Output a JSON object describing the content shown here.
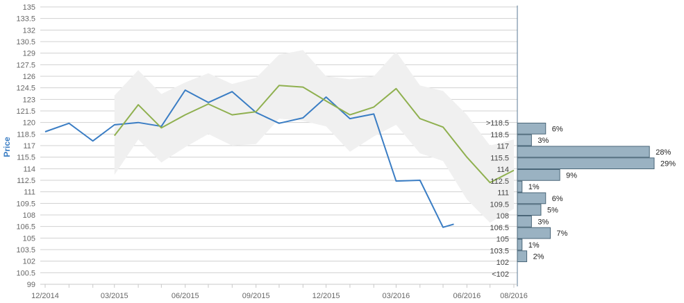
{
  "chart_data": {
    "type": "line",
    "ylabel": "Price",
    "ylim": [
      99,
      135
    ],
    "y_ticks": [
      "135",
      "133.5",
      "132",
      "130.5",
      "129",
      "127.5",
      "126",
      "124.5",
      "123",
      "121.5",
      "120",
      "118.5",
      "117",
      "115.5",
      "114",
      "112.5",
      "111",
      "109.5",
      "108",
      "106.5",
      "105",
      "103.5",
      "102",
      "100.5",
      "99"
    ],
    "x_ticks": [
      "12/2014",
      "03/2015",
      "06/2015",
      "09/2015",
      "12/2015",
      "03/2016",
      "06/2016",
      "08/2016"
    ],
    "grid": true,
    "colors": {
      "price": "#3a7dc4",
      "target": "#8fb04f",
      "band": "#f0f0f0",
      "bars": "#9ab2c2",
      "bar_border": "#4a6678"
    },
    "series": [
      {
        "role": "price",
        "x": [
          "2014-12-01",
          "2015-01-01",
          "2015-02-01",
          "2015-03-01",
          "2015-04-01",
          "2015-05-01",
          "2015-06-01",
          "2015-07-01",
          "2015-08-01",
          "2015-09-01",
          "2015-10-01",
          "2015-11-01",
          "2015-12-01",
          "2016-01-01",
          "2016-02-01",
          "2016-03-01",
          "2016-04-01",
          "2016-05-01",
          "2016-05-15"
        ],
        "values": [
          118.8,
          119.9,
          117.6,
          119.7,
          120.0,
          119.5,
          124.2,
          122.6,
          124.0,
          121.3,
          119.9,
          120.6,
          123.3,
          120.5,
          121.1,
          112.4,
          112.5,
          106.4,
          106.8
        ]
      },
      {
        "role": "target",
        "x": [
          "2015-03-01",
          "2015-04-01",
          "2015-05-01",
          "2015-06-01",
          "2015-07-01",
          "2015-08-01",
          "2015-09-01",
          "2015-10-01",
          "2015-11-01",
          "2015-12-01",
          "2016-01-01",
          "2016-02-01",
          "2016-03-01",
          "2016-04-01",
          "2016-05-01",
          "2016-06-01",
          "2016-07-01",
          "2016-08-01"
        ],
        "values": [
          118.3,
          122.3,
          119.3,
          121.0,
          122.4,
          121.0,
          121.4,
          124.8,
          124.6,
          122.8,
          121.0,
          122.0,
          124.4,
          120.5,
          119.4,
          115.5,
          112.2,
          113.8
        ]
      }
    ],
    "band": {
      "x": [
        "2015-03-01",
        "2015-04-01",
        "2015-05-01",
        "2015-06-01",
        "2015-07-01",
        "2015-08-01",
        "2015-09-01",
        "2015-10-01",
        "2015-11-01",
        "2015-12-01",
        "2016-01-01",
        "2016-02-01",
        "2016-03-01",
        "2016-04-01",
        "2016-05-01",
        "2016-06-01",
        "2016-07-01",
        "2016-08-01"
      ],
      "upper": [
        123.5,
        126.8,
        123.7,
        125.2,
        126.4,
        125.0,
        125.8,
        128.8,
        129.4,
        126.0,
        125.6,
        126.0,
        129.2,
        124.8,
        124.1,
        121.0,
        117.0,
        117.8
      ],
      "lower": [
        113.2,
        117.8,
        114.8,
        116.8,
        118.5,
        117.0,
        117.2,
        120.5,
        120.2,
        119.5,
        116.2,
        118.2,
        119.7,
        116.0,
        115.0,
        110.0,
        107.0,
        108.8
      ]
    },
    "distribution": {
      "labels": [
        ">118.5",
        "118.5",
        "117",
        "115.5",
        "114",
        "112.5",
        "111",
        "109.5",
        "108",
        "106.5",
        "105",
        "103.5",
        "102",
        "<102"
      ],
      "percent_labels": [
        "6%",
        "3%",
        "28%",
        "29%",
        "9%",
        "1%",
        "6%",
        "5%",
        "3%",
        "7%",
        "1%",
        "2%",
        "",
        ""
      ],
      "values": [
        6,
        3,
        28,
        29,
        9,
        1,
        6,
        5,
        3,
        7,
        1,
        2,
        0,
        0
      ]
    }
  }
}
